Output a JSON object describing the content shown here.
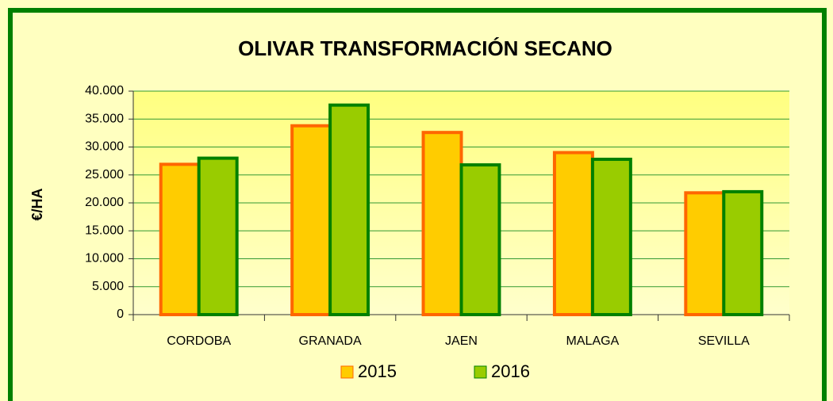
{
  "chart_data": {
    "type": "bar",
    "title": "OLIVAR TRANSFORMACIÓN SECANO",
    "y_label": "€/HA",
    "categories": [
      "CORDOBA",
      "GRANADA",
      "JAEN",
      "MALAGA",
      "SEVILLA"
    ],
    "series": [
      {
        "name": "2015",
        "color": "#ffcc00",
        "edge_color": "#ff6600",
        "values": [
          26900,
          33800,
          32600,
          29000,
          21800
        ]
      },
      {
        "name": "2016",
        "color": "#99cc00",
        "edge_color": "#008000",
        "values": [
          28000,
          37500,
          26800,
          27800,
          22000
        ]
      }
    ],
    "ylim": [
      0,
      40000
    ],
    "yticks": [
      0,
      {
        "value": 5000,
        "label": "5.000"
      },
      {
        "value": 10000,
        "label": "10.000"
      },
      {
        "value": 15000,
        "label": "15.000"
      },
      {
        "value": 20000,
        "label": "20.000"
      },
      {
        "value": 25000,
        "label": "25.000"
      },
      {
        "value": 30000,
        "label": "30.000"
      },
      {
        "value": 35000,
        "label": "35.000"
      },
      {
        "value": 40000,
        "label": "40.000"
      }
    ],
    "grid": true,
    "legend": "bottom"
  }
}
